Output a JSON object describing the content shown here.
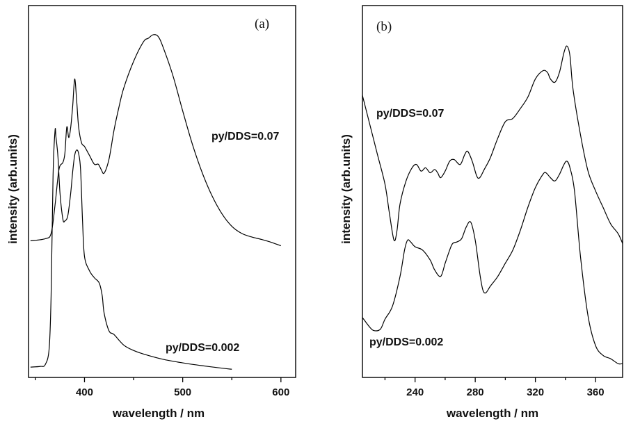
{
  "chart_data": [
    {
      "type": "line",
      "panel_label": "(a)",
      "xlabel": "wavelength / nm",
      "ylabel": "intensity (arb.units)",
      "xlim": [
        343,
        615
      ],
      "ylim": [
        0,
        1
      ],
      "xticks": [
        400,
        500,
        600
      ],
      "y_tick_labels": false,
      "grid": false,
      "legend": "none",
      "annotations": [
        {
          "text": "py/DDS=0.07",
          "series": 0
        },
        {
          "text": "py/DDS=0.002",
          "series": 1
        }
      ],
      "series": [
        {
          "name": "py/DDS=0.07",
          "x": [
            345,
            360,
            366,
            370,
            374,
            378,
            380,
            382,
            384,
            386,
            388,
            390,
            392,
            394,
            397,
            400,
            405,
            410,
            414,
            417,
            420,
            425,
            430,
            435,
            440,
            450,
            460,
            465,
            470,
            475,
            480,
            490,
            500,
            510,
            520,
            530,
            540,
            550,
            560,
            570,
            580,
            590,
            600
          ],
          "y": [
            0.384,
            0.39,
            0.405,
            0.485,
            0.585,
            0.605,
            0.63,
            0.705,
            0.675,
            0.705,
            0.765,
            0.84,
            0.78,
            0.705,
            0.66,
            0.65,
            0.625,
            0.6,
            0.6,
            0.585,
            0.575,
            0.615,
            0.695,
            0.76,
            0.815,
            0.89,
            0.945,
            0.955,
            0.965,
            0.96,
            0.93,
            0.85,
            0.75,
            0.655,
            0.575,
            0.51,
            0.46,
            0.425,
            0.405,
            0.395,
            0.388,
            0.38,
            0.37
          ]
        },
        {
          "name": "py/DDS=0.002",
          "x": [
            345,
            355,
            360,
            364,
            366,
            368,
            370,
            371,
            373,
            375,
            378,
            380,
            383,
            386,
            388,
            390,
            392,
            394,
            396,
            398,
            400,
            405,
            410,
            415,
            418,
            420,
            425,
            430,
            440,
            450,
            460,
            480,
            500,
            520,
            540,
            550
          ],
          "y": [
            0.028,
            0.03,
            0.035,
            0.08,
            0.23,
            0.57,
            0.695,
            0.675,
            0.62,
            0.52,
            0.445,
            0.44,
            0.455,
            0.52,
            0.58,
            0.625,
            0.64,
            0.63,
            0.585,
            0.44,
            0.34,
            0.3,
            0.28,
            0.265,
            0.23,
            0.18,
            0.13,
            0.12,
            0.09,
            0.075,
            0.065,
            0.05,
            0.04,
            0.032,
            0.025,
            0.022
          ]
        }
      ]
    },
    {
      "type": "line",
      "panel_label": "(b)",
      "xlabel": "wavelength / nm",
      "ylabel": "intensity (arb.units)",
      "xlim": [
        205,
        378
      ],
      "ylim": [
        0,
        1
      ],
      "xticks": [
        240,
        280,
        320,
        360
      ],
      "y_tick_labels": false,
      "grid": false,
      "legend": "none",
      "annotations": [
        {
          "text": "py/DDS=0.07",
          "series": 0
        },
        {
          "text": "py/DDS=0.002",
          "series": 1
        }
      ],
      "series": [
        {
          "name": "py/DDS=0.07",
          "x": [
            205,
            210,
            215,
            220,
            223,
            226,
            228,
            230,
            234,
            238,
            241,
            244,
            247,
            250,
            253,
            255,
            257,
            260,
            263,
            266,
            270,
            273,
            275,
            278,
            281,
            283,
            286,
            290,
            295,
            300,
            305,
            310,
            315,
            320,
            325,
            328,
            330,
            333,
            336,
            339,
            341,
            343,
            345,
            350,
            355,
            360,
            365,
            370,
            375,
            378
          ],
          "y": [
            0.84,
            0.75,
            0.66,
            0.57,
            0.48,
            0.4,
            0.43,
            0.51,
            0.58,
            0.62,
            0.63,
            0.61,
            0.62,
            0.605,
            0.615,
            0.605,
            0.59,
            0.61,
            0.64,
            0.645,
            0.63,
            0.66,
            0.67,
            0.64,
            0.595,
            0.59,
            0.615,
            0.65,
            0.71,
            0.76,
            0.77,
            0.8,
            0.835,
            0.89,
            0.915,
            0.91,
            0.89,
            0.88,
            0.91,
            0.97,
            0.99,
            0.96,
            0.86,
            0.72,
            0.61,
            0.55,
            0.5,
            0.45,
            0.42,
            0.39
          ]
        },
        {
          "name": "py/DDS=0.002",
          "x": [
            205,
            210,
            213,
            217,
            220,
            225,
            230,
            233,
            235,
            237,
            240,
            245,
            250,
            253,
            257,
            260,
            263,
            265,
            268,
            271,
            274,
            277,
            280,
            283,
            285,
            287,
            290,
            295,
            300,
            305,
            310,
            315,
            320,
            325,
            327,
            330,
            333,
            336,
            339,
            341,
            343,
            346,
            350,
            355,
            360,
            365,
            370,
            375,
            378
          ],
          "y": [
            0.165,
            0.135,
            0.125,
            0.13,
            0.16,
            0.2,
            0.29,
            0.37,
            0.4,
            0.395,
            0.38,
            0.37,
            0.34,
            0.31,
            0.29,
            0.33,
            0.37,
            0.39,
            0.395,
            0.405,
            0.44,
            0.455,
            0.4,
            0.3,
            0.25,
            0.24,
            0.26,
            0.29,
            0.33,
            0.37,
            0.43,
            0.5,
            0.56,
            0.6,
            0.605,
            0.59,
            0.58,
            0.6,
            0.63,
            0.64,
            0.62,
            0.55,
            0.35,
            0.17,
            0.08,
            0.05,
            0.04,
            0.025,
            0.025
          ]
        }
      ]
    }
  ]
}
